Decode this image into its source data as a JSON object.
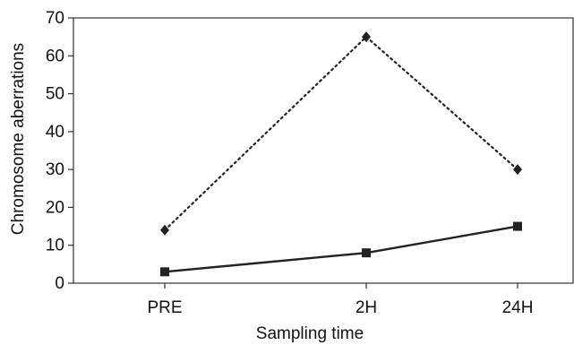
{
  "chart_data": {
    "type": "line",
    "title": "",
    "xlabel": "Sampling time",
    "ylabel": "Chromosome aberrations",
    "categories": [
      "PRE",
      "2H",
      "24H"
    ],
    "y_ticks": [
      "0",
      "10",
      "20",
      "30",
      "40",
      "50",
      "60",
      "70"
    ],
    "ylim": [
      0,
      70
    ],
    "grid": false,
    "legend": "none",
    "series": [
      {
        "values": [
          14,
          65,
          30
        ],
        "style": "dotted",
        "marker": "diamond",
        "color": "#222222"
      },
      {
        "values": [
          3,
          8,
          15
        ],
        "style": "solid",
        "marker": "square",
        "color": "#222222"
      }
    ]
  }
}
